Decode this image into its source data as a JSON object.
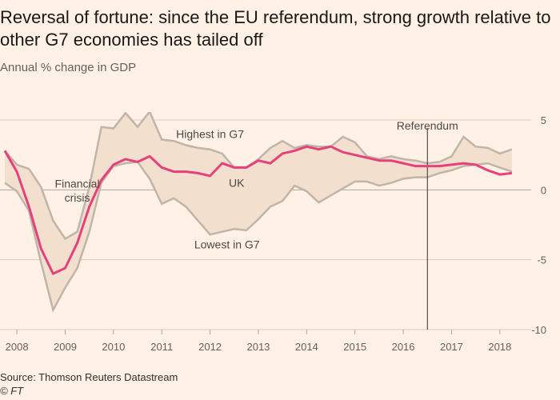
{
  "title": "Reversal of fortune: since the EU referendum, strong growth relative to other G7 economies has tailed off",
  "subtitle": "Annual % change in GDP",
  "source": "Source: Thomson Reuters Datastream",
  "copyright": "© FT",
  "colors": {
    "background": "#fff1e5",
    "band_fill": "#f2dfce",
    "band_lines": "#bfb5a8",
    "uk": "#e5417c",
    "grid": "#d9cabd",
    "axis_text": "#66605c",
    "referendum_line": "#33302e"
  },
  "chart_data": {
    "type": "line",
    "title": "Reversal of fortune: since the EU referendum, strong growth relative to other G7 economies has tailed off",
    "ylabel": "Annual % change in GDP",
    "xlabel": "",
    "xlim": [
      2007.75,
      2018.5
    ],
    "ylim": [
      -10,
      5
    ],
    "yticks": [
      5,
      0,
      -5,
      -10
    ],
    "xticks": [
      {
        "value": 2008,
        "label": "2008"
      },
      {
        "value": 2009,
        "label": "2009"
      },
      {
        "value": 2010,
        "label": "2010"
      },
      {
        "value": 2011,
        "label": "2011"
      },
      {
        "value": 2012,
        "label": "2012"
      },
      {
        "value": 2013,
        "label": "2013"
      },
      {
        "value": 2014,
        "label": "2014"
      },
      {
        "value": 2015,
        "label": "2015"
      },
      {
        "value": 2016,
        "label": "2016"
      },
      {
        "value": 2017,
        "label": "2017"
      },
      {
        "value": 2018,
        "label": "2018"
      }
    ],
    "x": [
      2007.75,
      2008.0,
      2008.25,
      2008.5,
      2008.75,
      2009.0,
      2009.25,
      2009.5,
      2009.75,
      2010.0,
      2010.25,
      2010.5,
      2010.75,
      2011.0,
      2011.25,
      2011.5,
      2011.75,
      2012.0,
      2012.25,
      2012.5,
      2012.75,
      2013.0,
      2013.25,
      2013.5,
      2013.75,
      2014.0,
      2014.25,
      2014.5,
      2014.75,
      2015.0,
      2015.25,
      2015.5,
      2015.75,
      2016.0,
      2016.25,
      2016.5,
      2016.75,
      2017.0,
      2017.25,
      2017.5,
      2017.75,
      2018.0,
      2018.25
    ],
    "series": [
      {
        "name": "Highest in G7",
        "values": [
          2.8,
          1.8,
          1.5,
          0.2,
          -2.2,
          -3.5,
          -3.0,
          0.2,
          4.5,
          4.4,
          5.5,
          4.5,
          5.6,
          3.6,
          3.5,
          3.2,
          3.0,
          2.9,
          2.6,
          1.6,
          1.6,
          2.2,
          3.0,
          3.5,
          3.0,
          3.2,
          3.1,
          3.1,
          3.8,
          3.4,
          2.4,
          2.2,
          2.4,
          2.2,
          2.1,
          1.9,
          2.0,
          2.4,
          3.8,
          3.1,
          3.0,
          2.6,
          2.9
        ]
      },
      {
        "name": "UK",
        "values": [
          2.8,
          1.3,
          -1.2,
          -4.2,
          -6.0,
          -5.6,
          -3.8,
          -1.2,
          0.7,
          1.8,
          2.2,
          2.0,
          2.4,
          1.6,
          1.3,
          1.3,
          1.2,
          1.0,
          1.9,
          1.6,
          1.6,
          2.1,
          1.9,
          2.6,
          2.8,
          3.1,
          2.9,
          3.1,
          2.7,
          2.5,
          2.3,
          2.1,
          2.1,
          1.9,
          1.7,
          1.7,
          1.7,
          1.8,
          1.9,
          1.8,
          1.4,
          1.1,
          1.2
        ]
      },
      {
        "name": "Lowest in G7",
        "values": [
          0.5,
          -0.1,
          -1.5,
          -5.2,
          -8.6,
          -7.0,
          -5.6,
          -3.0,
          0.5,
          1.7,
          1.9,
          2.0,
          0.8,
          -1.0,
          -0.6,
          -1.2,
          -2.2,
          -3.2,
          -3.0,
          -2.8,
          -2.9,
          -2.1,
          -1.2,
          -0.8,
          0.3,
          -0.1,
          -0.9,
          -0.4,
          0.1,
          0.6,
          0.6,
          0.3,
          0.5,
          0.8,
          0.9,
          0.9,
          1.2,
          1.4,
          1.7,
          1.8,
          1.9,
          1.6,
          1.3
        ]
      }
    ],
    "annotations": [
      {
        "text": "Highest in G7",
        "x": 2012.0,
        "y": 4.0
      },
      {
        "text": "UK",
        "x": 2012.55,
        "y": 0.5
      },
      {
        "text": "Lowest in G7",
        "x": 2012.35,
        "y": -3.9
      },
      {
        "text": "Financial",
        "x": 2009.25,
        "y": 0.45
      },
      {
        "text": "crisis",
        "x": 2009.25,
        "y": -0.55
      }
    ],
    "marker": {
      "label": "Referendum",
      "x": 2016.5
    }
  }
}
